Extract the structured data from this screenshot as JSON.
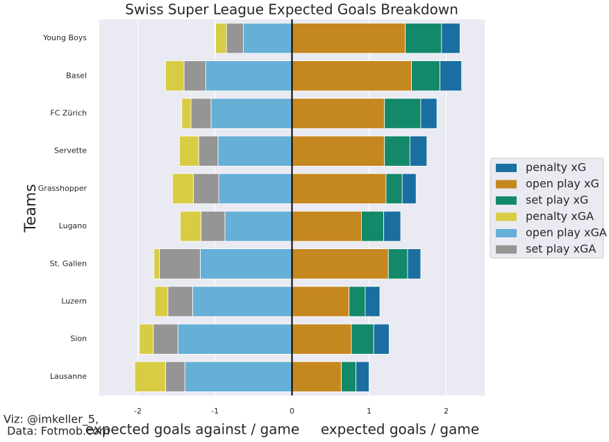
{
  "chart_data": {
    "type": "diverging-bar",
    "title": "Swiss Super League Expected Goals Breakdown",
    "ylabel": "Teams",
    "xlabel_left": "expected goals against / game",
    "xlabel_right": "expected goals / game",
    "annotation": [
      "Viz: @imkeller_5,",
      " Data: Fotmob.com"
    ],
    "categories": [
      "Young Boys",
      "Basel",
      "FC Zürich",
      "Servette",
      "Grasshopper",
      "Lugano",
      "St. Gallen",
      "Luzern",
      "Sion",
      "Lausanne"
    ],
    "series": [
      {
        "name": "penalty xG",
        "color": "#1a6fa0",
        "values": [
          0.24,
          0.28,
          0.21,
          0.22,
          0.18,
          0.22,
          0.17,
          0.19,
          0.2,
          0.17
        ]
      },
      {
        "name": "open play xG",
        "color": "#c5871f",
        "values": [
          1.47,
          1.55,
          1.2,
          1.2,
          1.22,
          0.9,
          1.25,
          0.74,
          0.77,
          0.64
        ]
      },
      {
        "name": "set play xG",
        "color": "#14896a",
        "values": [
          0.47,
          0.37,
          0.47,
          0.33,
          0.21,
          0.29,
          0.25,
          0.21,
          0.29,
          0.19
        ]
      },
      {
        "name": "penalty xGA",
        "color": "#d8cc45",
        "values": [
          -0.14,
          -0.24,
          -0.12,
          -0.25,
          -0.27,
          -0.27,
          -0.07,
          -0.17,
          -0.18,
          -0.4
        ]
      },
      {
        "name": "open play xGA",
        "color": "#66afd6",
        "values": [
          -0.63,
          -1.12,
          -1.05,
          -0.96,
          -0.95,
          -0.87,
          -1.19,
          -1.29,
          -1.48,
          -1.39
        ]
      },
      {
        "name": "set play xGA",
        "color": "#959595",
        "values": [
          -0.22,
          -0.28,
          -0.26,
          -0.25,
          -0.33,
          -0.31,
          -0.53,
          -0.32,
          -0.32,
          -0.25
        ]
      }
    ],
    "xlim": [
      -2.5,
      2.5
    ],
    "xticks": [
      -2,
      -1,
      0,
      1,
      2
    ],
    "grid": true,
    "legend": "right"
  }
}
